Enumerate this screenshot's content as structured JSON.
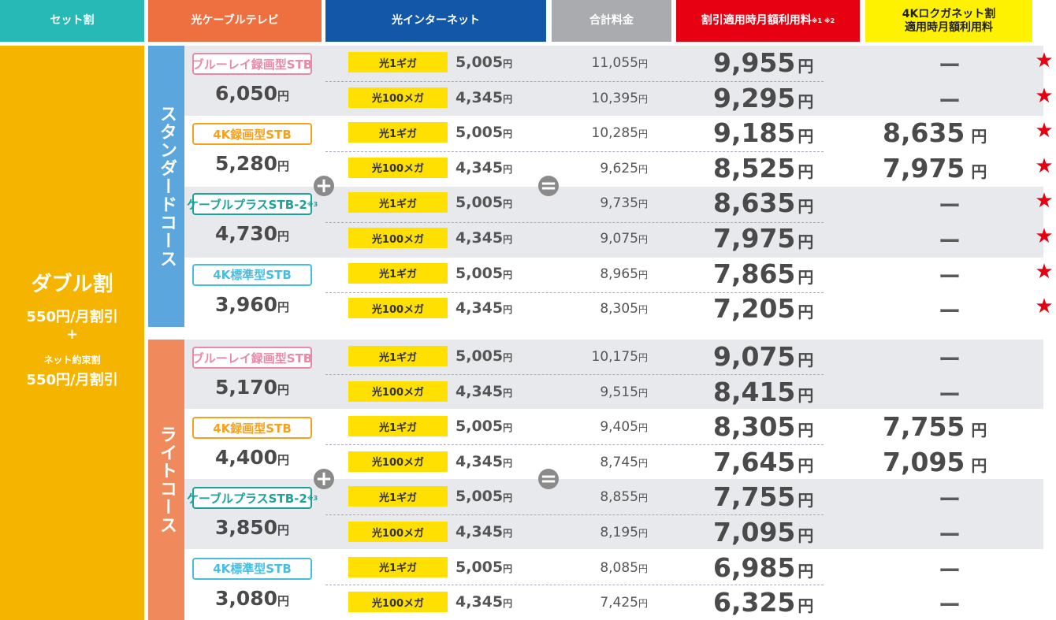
{
  "header": {
    "set": "セット割",
    "tv": "光ケーブルテレビ",
    "net": "光インターネット",
    "total": "合計料金",
    "discount": "割引適用時月額利用料",
    "discount_note": "※1 ※2",
    "logu_line1": "4Kロクガネット割",
    "logu_line2": "適用時月額利用料"
  },
  "left": {
    "title": "ダブル割",
    "d1": "550円/月割引",
    "plus": "+",
    "promise": "ネット約束割",
    "d2": "550円/月割引"
  },
  "courses": {
    "standard": "スタンダードコース",
    "light": "ライトコース"
  },
  "yen": "円",
  "net_tags": {
    "giga": "光1ギガ",
    "mega": "光100メガ"
  },
  "dash": "ー",
  "star": "★",
  "stb": [
    {
      "name": "ブルーレイ録画型STB",
      "note": "",
      "color": "#e88aa5"
    },
    {
      "name": "4K録画型STB",
      "note": "",
      "color": "#f5a11b"
    },
    {
      "name": "ケーブルプラスSTB-2",
      "note": "※3",
      "color": "#1aa39a"
    },
    {
      "name": "4K標準型STB",
      "note": "",
      "color": "#47bde0"
    }
  ],
  "standard_tv_prices": [
    "6,050",
    "5,280",
    "4,730",
    "3,960"
  ],
  "light_tv_prices": [
    "5,170",
    "4,400",
    "3,850",
    "3,080"
  ],
  "standard_rows": [
    {
      "net": "5,005",
      "total": "11,055",
      "disc": "9,955",
      "logu": ""
    },
    {
      "net": "4,345",
      "total": "10,395",
      "disc": "9,295",
      "logu": ""
    },
    {
      "net": "5,005",
      "total": "10,285",
      "disc": "9,185",
      "logu": "8,635"
    },
    {
      "net": "4,345",
      "total": "9,625",
      "disc": "8,525",
      "logu": "7,975"
    },
    {
      "net": "5,005",
      "total": "9,735",
      "disc": "8,635",
      "logu": ""
    },
    {
      "net": "4,345",
      "total": "9,075",
      "disc": "7,975",
      "logu": ""
    },
    {
      "net": "5,005",
      "total": "8,965",
      "disc": "7,865",
      "logu": ""
    },
    {
      "net": "4,345",
      "total": "8,305",
      "disc": "7,205",
      "logu": ""
    }
  ],
  "light_rows": [
    {
      "net": "5,005",
      "total": "10,175",
      "disc": "9,075",
      "logu": ""
    },
    {
      "net": "4,345",
      "total": "9,515",
      "disc": "8,415",
      "logu": ""
    },
    {
      "net": "5,005",
      "total": "9,405",
      "disc": "8,305",
      "logu": "7,755"
    },
    {
      "net": "4,345",
      "total": "8,745",
      "disc": "7,645",
      "logu": "7,095"
    },
    {
      "net": "5,005",
      "total": "8,855",
      "disc": "7,755",
      "logu": ""
    },
    {
      "net": "4,345",
      "total": "8,195",
      "disc": "7,095",
      "logu": ""
    },
    {
      "net": "5,005",
      "total": "8,085",
      "disc": "6,985",
      "logu": ""
    },
    {
      "net": "4,345",
      "total": "7,425",
      "disc": "6,325",
      "logu": ""
    }
  ],
  "colors": {
    "set": "#26b9b6",
    "tv": "#ee6f3f",
    "net": "#1257a8",
    "total": "#a9abae",
    "discount": "#e60012",
    "logu": "#fff200",
    "left": "#f5b400",
    "standard": "#5aa6dd",
    "light": "#f08a5d"
  }
}
